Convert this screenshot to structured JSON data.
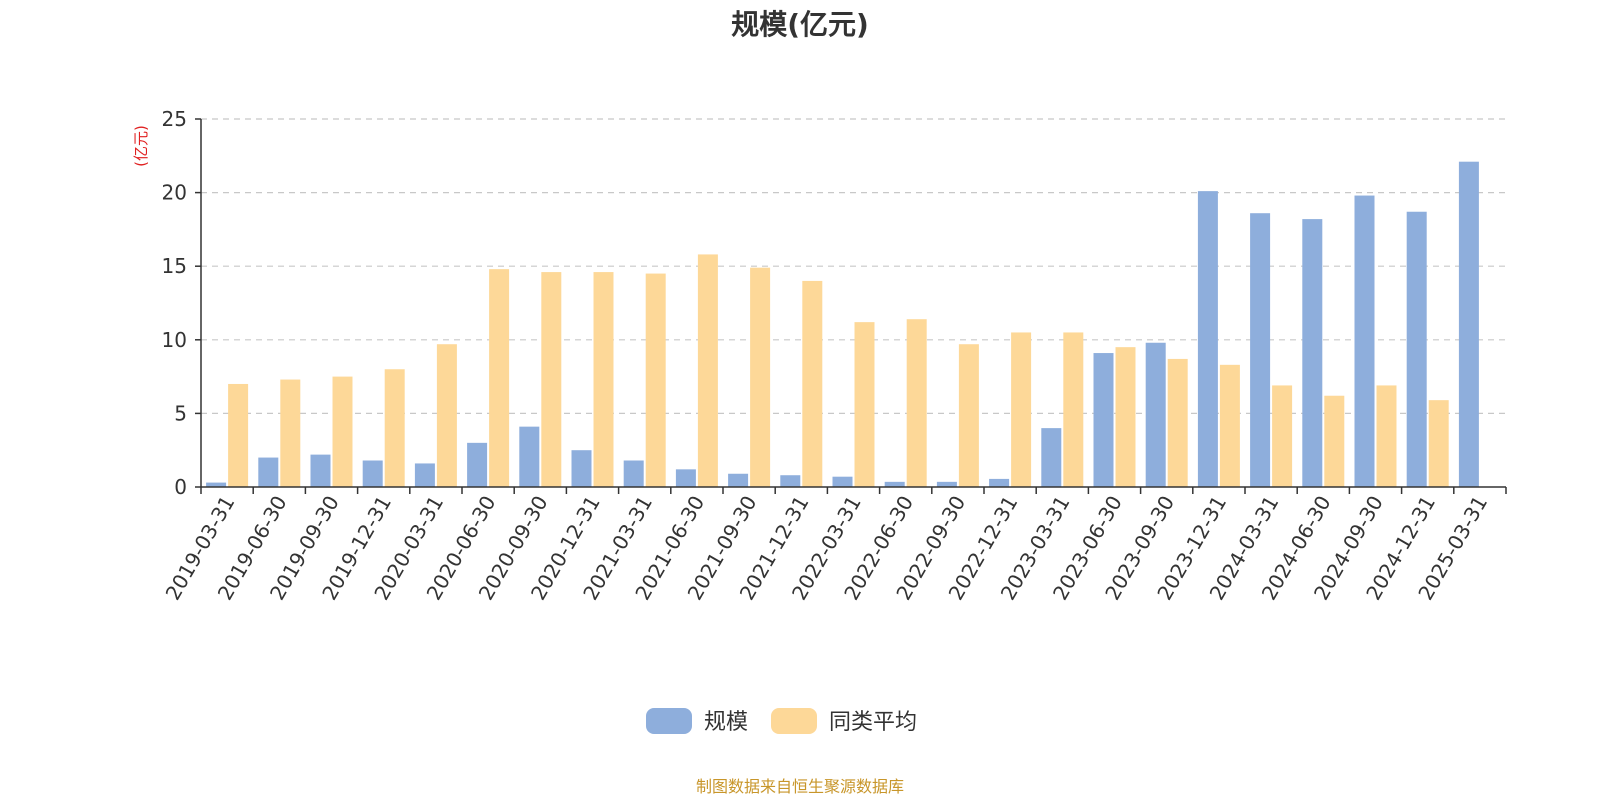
{
  "chart_data": {
    "type": "bar",
    "title": "规模(亿元)",
    "ylabel": "(亿元)",
    "ylim": [
      0,
      25
    ],
    "yticks": [
      0,
      5,
      10,
      15,
      20,
      25
    ],
    "grid": true,
    "legend_position": "bottom-center",
    "categories": [
      "2019-03-31",
      "2019-06-30",
      "2019-09-30",
      "2019-12-31",
      "2020-03-31",
      "2020-06-30",
      "2020-09-30",
      "2020-12-31",
      "2021-03-31",
      "2021-06-30",
      "2021-09-30",
      "2021-12-31",
      "2022-03-31",
      "2022-06-30",
      "2022-09-30",
      "2022-12-31",
      "2023-03-31",
      "2023-06-30",
      "2023-09-30",
      "2023-12-31",
      "2024-03-31",
      "2024-06-30",
      "2024-09-30",
      "2024-12-31",
      "2025-03-31"
    ],
    "series": [
      {
        "name": "规模",
        "color": "#8eaedc",
        "values": [
          0.3,
          2.0,
          2.2,
          1.8,
          1.6,
          3.0,
          4.1,
          2.5,
          1.8,
          1.2,
          0.9,
          0.8,
          0.7,
          0.35,
          0.35,
          0.55,
          4.0,
          9.1,
          9.8,
          20.1,
          18.6,
          18.2,
          19.8,
          18.7,
          22.1
        ]
      },
      {
        "name": "同类平均",
        "color": "#fdd898",
        "values": [
          7.0,
          7.3,
          7.5,
          8.0,
          9.7,
          14.8,
          14.6,
          14.6,
          14.5,
          15.8,
          14.9,
          14.0,
          11.2,
          11.4,
          9.7,
          10.5,
          10.5,
          9.5,
          8.7,
          8.3,
          6.9,
          6.2,
          6.9,
          5.9,
          null
        ]
      }
    ],
    "unit_color": "#e02020",
    "source_text": "制图数据来自恒生聚源数据库",
    "source_color": "#c8962a"
  }
}
